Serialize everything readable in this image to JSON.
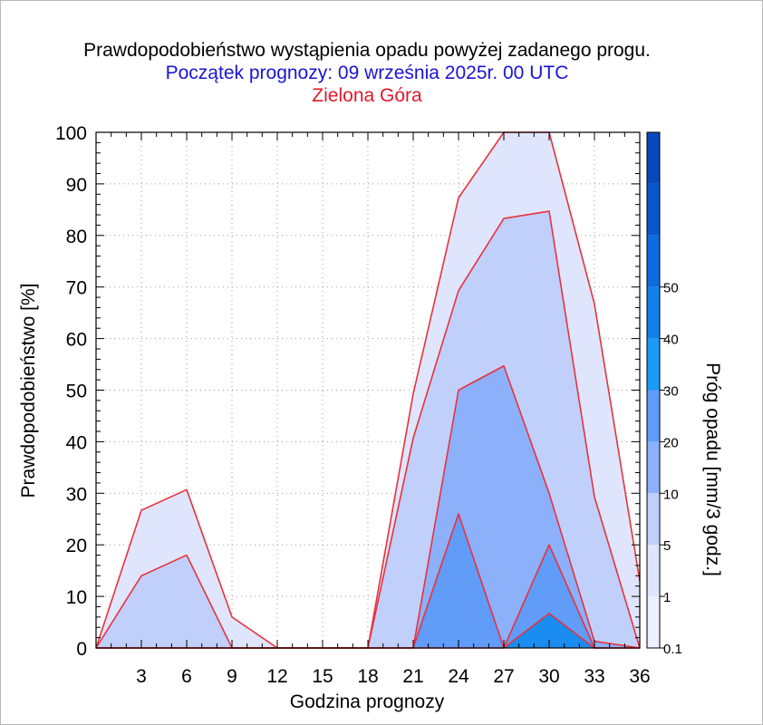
{
  "chart_data": {
    "type": "area",
    "title": "Prawdopodobieństwo wystąpienia opadu powyżej zadanego progu.",
    "subtitle": "Początek prognozy: 09 września 2025r. 00 UTC",
    "location": "Zielona Góra",
    "xlabel": "Godzina prognozy",
    "ylabel": "Prawdopodobieństwo [%]",
    "colorbar_label": "Próg opadu [mm/3 godz.]",
    "xlim": [
      0,
      36
    ],
    "ylim": [
      0,
      100
    ],
    "x_ticks": [
      3,
      6,
      9,
      12,
      15,
      18,
      21,
      24,
      27,
      30,
      33,
      36
    ],
    "y_ticks": [
      0,
      10,
      20,
      30,
      40,
      50,
      60,
      70,
      80,
      90,
      100
    ],
    "grid": true,
    "outline_color": "#e8323c",
    "x": [
      0,
      3,
      6,
      9,
      12,
      15,
      18,
      21,
      24,
      27,
      30,
      33,
      36
    ],
    "series": [
      {
        "threshold": "0.1",
        "color": "#dfe5fc",
        "values": [
          0,
          26.7,
          30.7,
          6,
          0,
          0,
          0,
          49.3,
          87.3,
          100,
          100,
          66.7,
          13
        ]
      },
      {
        "threshold": "1",
        "color": "#c0d0fb",
        "values": [
          0,
          14,
          18,
          0,
          0,
          0,
          0,
          40.7,
          69.3,
          83.3,
          84.7,
          29.3,
          0
        ]
      },
      {
        "threshold": "5",
        "color": "#8cb0fa",
        "values": [
          0,
          0,
          0,
          0,
          0,
          0,
          0,
          0,
          50,
          54.7,
          30,
          1.3,
          0
        ]
      },
      {
        "threshold": "10",
        "color": "#609cf8",
        "values": [
          0,
          0,
          0,
          0,
          0,
          0,
          0,
          0,
          26,
          0,
          20,
          0,
          0
        ]
      },
      {
        "threshold": "20",
        "color": "#1a8cf0",
        "values": [
          0,
          0,
          0,
          0,
          0,
          0,
          0,
          0,
          0,
          0,
          6.7,
          0,
          0
        ]
      }
    ],
    "colorbar": {
      "labels": [
        "0.1",
        "1",
        "5",
        "10",
        "20",
        "30",
        "40",
        "50"
      ],
      "colors": [
        "#edf0fe",
        "#dfe5fc",
        "#c0d0fb",
        "#8cb0fa",
        "#609cf8",
        "#1a9cf4",
        "#1080ec",
        "#0c6ce0",
        "#0a58d0",
        "#0848bc"
      ]
    }
  }
}
